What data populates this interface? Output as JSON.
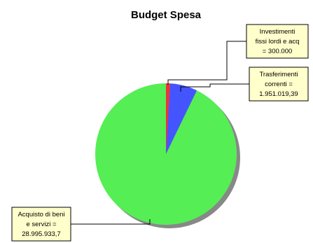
{
  "chart_data": {
    "type": "pie",
    "title": "Budget Spesa",
    "slices": [
      {
        "category": "Acquisto di beni e servizi",
        "value": 28995933.7,
        "label_lines": [
          "Acquisto di beni",
          "e servizi =",
          "28.995.933,7"
        ],
        "color": "#55ee55"
      },
      {
        "category": "Trasferimenti correnti",
        "value": 1951019.39,
        "label_lines": [
          "Trasferimenti",
          "correnti =",
          "1.951.019,39"
        ],
        "color": "#4455ff"
      },
      {
        "category": "Investimenti fissi lordi e acq",
        "value": 300000,
        "label_lines": [
          "Investimenti",
          "fissi lordi e acq",
          "= 300.000"
        ],
        "color": "#ee3333"
      }
    ]
  },
  "colors": {
    "callout_fill": "#ffffcc",
    "shadow": "#888888"
  }
}
